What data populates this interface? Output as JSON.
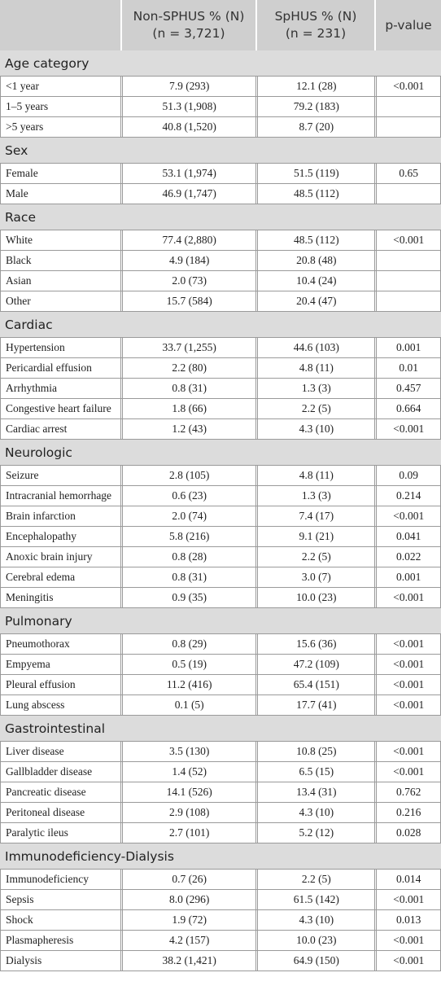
{
  "table": {
    "columns": [
      {
        "title": "Non-SPHUS % (N)",
        "subtitle": "(n = 3,721)"
      },
      {
        "title": "SpHUS % (N)",
        "subtitle": "(n = 231)"
      },
      {
        "title": "p-value"
      }
    ],
    "sections": [
      {
        "title": "Age category",
        "rows": [
          [
            "<1 year",
            "7.9 (293)",
            "12.1 (28)",
            "<0.001"
          ],
          [
            "1–5 years",
            "51.3 (1,908)",
            "79.2 (183)"
          ],
          [
            ">5 years",
            "40.8 (1,520)",
            "8.7 (20)"
          ]
        ]
      },
      {
        "title": "Sex",
        "rows": [
          [
            "Female",
            "53.1 (1,974)",
            "51.5 (119)",
            "0.65"
          ],
          [
            "Male",
            "46.9 (1,747)",
            "48.5 (112)"
          ]
        ]
      },
      {
        "title": "Race",
        "rows": [
          [
            "White",
            "77.4 (2,880)",
            "48.5 (112)",
            "<0.001"
          ],
          [
            "Black",
            "4.9 (184)",
            "20.8 (48)"
          ],
          [
            "Asian",
            "2.0 (73)",
            "10.4 (24)"
          ],
          [
            "Other",
            "15.7 (584)",
            "20.4 (47)"
          ]
        ]
      },
      {
        "title": "Cardiac",
        "rows": [
          [
            "Hypertension",
            "33.7 (1,255)",
            "44.6 (103)",
            "0.001"
          ],
          [
            "Pericardial effusion",
            "2.2 (80)",
            "4.8 (11)",
            "0.01"
          ],
          [
            "Arrhythmia",
            "0.8 (31)",
            "1.3 (3)",
            "0.457"
          ],
          [
            "Congestive heart failure",
            "1.8 (66)",
            "2.2 (5)",
            "0.664"
          ],
          [
            "Cardiac arrest",
            "1.2 (43)",
            "4.3 (10)",
            "<0.001"
          ]
        ]
      },
      {
        "title": "Neurologic",
        "rows": [
          [
            "Seizure",
            "2.8 (105)",
            "4.8 (11)",
            "0.09"
          ],
          [
            "Intracranial hemorrhage",
            "0.6 (23)",
            "1.3 (3)",
            "0.214"
          ],
          [
            "Brain infarction",
            "2.0 (74)",
            "7.4 (17)",
            "<0.001"
          ],
          [
            "Encephalopathy",
            "5.8 (216)",
            "9.1 (21)",
            "0.041"
          ],
          [
            "Anoxic brain injury",
            "0.8 (28)",
            "2.2 (5)",
            "0.022"
          ],
          [
            "Cerebral edema",
            "0.8 (31)",
            "3.0 (7)",
            "0.001"
          ],
          [
            "Meningitis",
            "0.9 (35)",
            "10.0 (23)",
            "<0.001"
          ]
        ]
      },
      {
        "title": "Pulmonary",
        "rows": [
          [
            "Pneumothorax",
            "0.8 (29)",
            "15.6 (36)",
            "<0.001"
          ],
          [
            "Empyema",
            "0.5 (19)",
            "47.2 (109)",
            "<0.001"
          ],
          [
            "Pleural effusion",
            "11.2 (416)",
            "65.4 (151)",
            "<0.001"
          ],
          [
            "Lung abscess",
            "0.1 (5)",
            "17.7 (41)",
            "<0.001"
          ]
        ]
      },
      {
        "title": "Gastrointestinal",
        "rows": [
          [
            "Liver disease",
            "3.5 (130)",
            "10.8 (25)",
            "<0.001"
          ],
          [
            "Gallbladder disease",
            "1.4 (52)",
            "6.5 (15)",
            "<0.001"
          ],
          [
            "Pancreatic disease",
            "14.1 (526)",
            "13.4 (31)",
            "0.762"
          ],
          [
            "Peritoneal disease",
            "2.9 (108)",
            "4.3 (10)",
            "0.216"
          ],
          [
            "Paralytic ileus",
            "2.7 (101)",
            "5.2 (12)",
            "0.028"
          ]
        ]
      },
      {
        "title": "Immunodeficiency-Dialysis",
        "rows": [
          [
            "Immunodeficiency",
            "0.7 (26)",
            "2.2 (5)",
            "0.014"
          ],
          [
            "Sepsis",
            "8.0 (296)",
            "61.5 (142)",
            "<0.001"
          ],
          [
            "Shock",
            "1.9 (72)",
            "4.3 (10)",
            "0.013"
          ],
          [
            "Plasmapheresis",
            "4.2 (157)",
            "10.0 (23)",
            "<0.001"
          ],
          [
            "Dialysis",
            "38.2 (1,421)",
            "64.9 (150)",
            "<0.001"
          ]
        ]
      }
    ]
  }
}
